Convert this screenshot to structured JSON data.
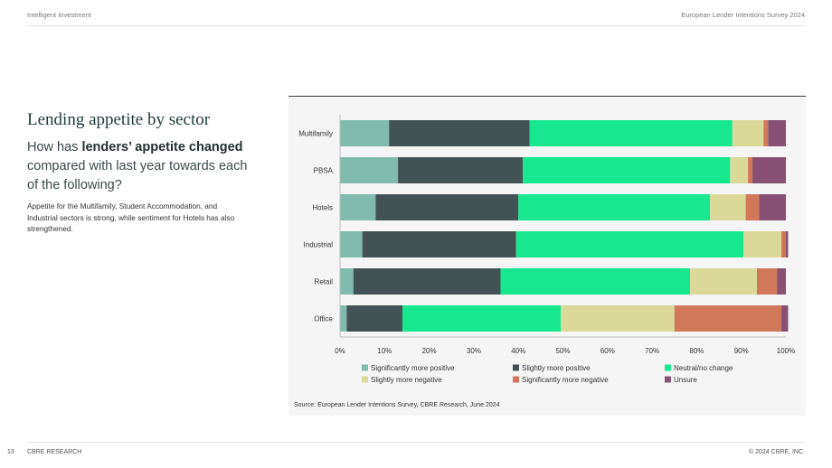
{
  "header": {
    "left": "Intelligent Investment",
    "right": "European Lender Intentions Survey 2024"
  },
  "title": "Lending appetite by sector",
  "question": {
    "part1": "How has ",
    "bold1": "lenders’ appetite changed",
    "part2": " compared with last year towards each of the following?"
  },
  "description": "Appetite for the Multifamily, Student Accommodation, and Industrial sectors is strong, while sentiment for Hotels has also strengthened.",
  "source": "Source: European Lender Intentions Survey, CBRE Research, June 2024",
  "footer": {
    "page": "13",
    "brand": "CBRE RESEARCH",
    "copyright": "© 2024 CBRE, INC."
  },
  "colors": {
    "Significantly more positive": "#80bbad",
    "Slightly more positive": "#435254",
    "Neutral/no change": "#17e88f",
    "Slightly more negative": "#dbd99a",
    "Significantly more negative": "#d2785a",
    "Unsure": "#885073"
  },
  "chart_data": {
    "type": "bar",
    "orientation": "horizontal",
    "stacked": true,
    "categories": [
      "Multifamily",
      "PBSA",
      "Hotels",
      "Industrial",
      "Retail",
      "Office"
    ],
    "series": [
      {
        "name": "Significantly more positive",
        "values": [
          11,
          13,
          8,
          5,
          3,
          1.5
        ]
      },
      {
        "name": "Slightly more positive",
        "values": [
          31.5,
          28,
          32,
          34.5,
          33,
          12.5
        ]
      },
      {
        "name": "Neutral/no change",
        "values": [
          45.5,
          46.5,
          43,
          51,
          42.5,
          35.5
        ]
      },
      {
        "name": "Slightly more negative",
        "values": [
          7,
          4,
          8,
          8.5,
          15,
          25.5
        ]
      },
      {
        "name": "Significantly more negative",
        "values": [
          1,
          1,
          3,
          1,
          4.5,
          24
        ]
      },
      {
        "name": "Unsure",
        "values": [
          4,
          7.5,
          6,
          0.5,
          2,
          1.5
        ]
      }
    ],
    "xlim": [
      0,
      100
    ],
    "xticks": [
      "0%",
      "10%",
      "20%",
      "30%",
      "40%",
      "50%",
      "60%",
      "70%",
      "80%",
      "90%",
      "100%"
    ],
    "legend_position": "bottom"
  }
}
